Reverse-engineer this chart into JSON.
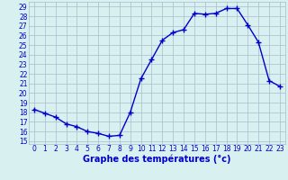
{
  "hours": [
    0,
    1,
    2,
    3,
    4,
    5,
    6,
    7,
    8,
    9,
    10,
    11,
    12,
    13,
    14,
    15,
    16,
    17,
    18,
    19,
    20,
    21,
    22,
    23
  ],
  "temps": [
    18.3,
    17.9,
    17.5,
    16.8,
    16.5,
    16.0,
    15.8,
    15.5,
    15.6,
    18.0,
    21.5,
    23.5,
    25.5,
    26.3,
    26.6,
    28.3,
    28.2,
    28.3,
    28.8,
    28.8,
    27.1,
    25.3,
    21.3,
    20.7
  ],
  "line_color": "#0000cc",
  "marker": "+",
  "marker_size": 4,
  "bg_color": "#d8f0f0",
  "grid_color": "#aabbcc",
  "xlabel": "Graphe des températures (°c)",
  "xlabel_color": "#0000cc",
  "xlim_min": -0.5,
  "xlim_max": 23.5,
  "ylim_min": 14.7,
  "ylim_max": 29.5,
  "yticks": [
    15,
    16,
    17,
    18,
    19,
    20,
    21,
    22,
    23,
    24,
    25,
    26,
    27,
    28,
    29
  ],
  "xticks": [
    0,
    1,
    2,
    3,
    4,
    5,
    6,
    7,
    8,
    9,
    10,
    11,
    12,
    13,
    14,
    15,
    16,
    17,
    18,
    19,
    20,
    21,
    22,
    23
  ],
  "tick_label_color": "#0000cc",
  "tick_label_fontsize": 5.5,
  "xlabel_fontsize": 7,
  "xlabel_fontweight": "bold",
  "linewidth": 1.0,
  "markeredgewidth": 1.0
}
